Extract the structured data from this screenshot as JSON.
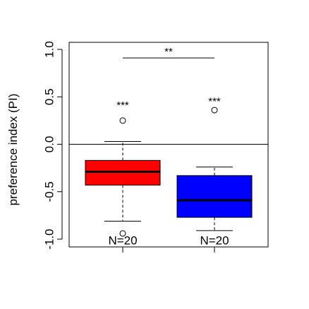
{
  "chart_data": {
    "type": "box",
    "title": "",
    "xlabel": "",
    "ylabel": "preference index (PI)",
    "ylim": [
      -1.0,
      1.0
    ],
    "yticks": [
      -1.0,
      -0.5,
      0.0,
      0.5,
      1.0
    ],
    "ytick_labels": [
      "-1.0",
      "-0.5",
      "0.0",
      "0.5",
      "1.0"
    ],
    "reference_line_y": 0.0,
    "grid": false,
    "legend": "none",
    "boxes": [
      {
        "color": "#ff0000",
        "q1": -0.43,
        "median": -0.29,
        "q3": -0.17,
        "whisker_low": -0.81,
        "whisker_high": 0.03,
        "outliers": [
          0.25,
          -0.94
        ],
        "n_label": "N=20",
        "sig_label": "***",
        "sig_y": 0.41
      },
      {
        "color": "#0000ff",
        "q1": -0.77,
        "median": -0.59,
        "q3": -0.33,
        "whisker_low": -0.91,
        "whisker_high": -0.24,
        "outliers": [
          0.36
        ],
        "n_label": "N=20",
        "sig_label": "***",
        "sig_y": 0.45
      }
    ],
    "comparison": {
      "label": "**",
      "y": 0.91,
      "from": 0,
      "to": 1
    }
  }
}
